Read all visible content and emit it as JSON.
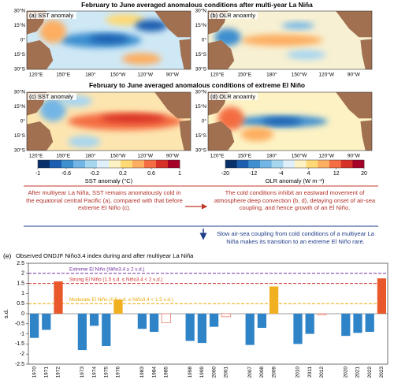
{
  "maps": {
    "title_top": "February to June averaged anomalous conditions after multi-year La Niña",
    "title_bottom": "February to June averaged anomalous conditions of extreme El Niño",
    "panels": [
      "(a) SST anomaly",
      "(b) OLR anoamly",
      "(c) SST anomaly",
      "(d) OLR anoamly"
    ],
    "lat_labels": [
      "30°N",
      "15°N",
      "0°",
      "15°S",
      "30°S"
    ],
    "lon_labels": [
      "120°E",
      "150°E",
      "180°",
      "150°W",
      "120°W",
      "90°W"
    ]
  },
  "colorbars": [
    {
      "label": "SST anomaly (°C)",
      "lim": [
        -1,
        1
      ],
      "ticks": [
        -1,
        -0.6,
        -0.2,
        0.2,
        0.6,
        1
      ]
    },
    {
      "label": "OLR anomaly (W m⁻²)",
      "lim": [
        -20,
        20
      ],
      "ticks": [
        -20,
        -12,
        -4,
        4,
        12,
        20
      ]
    }
  ],
  "notes": {
    "left": "After multiyear La Niña, SST remains anomalously cold in the equatorial central Pacific (a), compared with that before extreme El Niño (c).",
    "right": "The cold conditions inhibit an eastward movement of atmosphere deep convection (b, d), delaying onset of air-sea coupling, and hence growth of an El Niño.",
    "bottom": "Slow air-sea coupling from cold conditions of a multiyear La Niña makes its transition to an extreme El Niño rare."
  },
  "chart_data": {
    "type": "bar",
    "panel": "(e)",
    "title": "Observed ONDJF Niño3.4 index during and after multiyear La Niña",
    "y_label": "s.d.",
    "categories": [
      "1970",
      "1971",
      "1972",
      null,
      "1973",
      "1974",
      "1975",
      "1976",
      null,
      "1983",
      "1984",
      "1985",
      null,
      "1998",
      "1999",
      "2000",
      "2001",
      null,
      "2007",
      "2008",
      "2009",
      null,
      "2010",
      "2011",
      "2012",
      null,
      "2020",
      "2021",
      "2022",
      "2023"
    ],
    "values": [
      -1.2,
      -0.8,
      1.6,
      null,
      -1.8,
      -0.6,
      -1.6,
      0.7,
      null,
      -0.75,
      -0.9,
      -0.45,
      null,
      -1.35,
      -1.45,
      -0.65,
      -0.15,
      null,
      -1.55,
      -0.7,
      1.35,
      null,
      -1.5,
      -1.0,
      -0.05,
      null,
      -1.1,
      -0.95,
      -0.9,
      1.75
    ],
    "colors": [
      "#2f84c8",
      "#2f84c8",
      "#e8582a",
      null,
      "#2f84c8",
      "#2f84c8",
      "#2f84c8",
      "#f0b020",
      null,
      "#2f84c8",
      "#2f84c8",
      "none",
      null,
      "#2f84c8",
      "#2f84c8",
      "#2f84c8",
      "none",
      null,
      "#2f84c8",
      "#2f84c8",
      "#f0b020",
      null,
      "#2f84c8",
      "#2f84c8",
      "none",
      null,
      "#2f84c8",
      "#2f84c8",
      "#2f84c8",
      "#e8582a"
    ],
    "outline_color": "#e88070",
    "ylim": [
      -2.5,
      2.5
    ],
    "yticks": [
      -2.5,
      -2,
      -1.5,
      -1,
      -0.5,
      0,
      0.5,
      1,
      1.5,
      2,
      2.5
    ],
    "thresholds": [
      {
        "value": 2,
        "label": "Extreme El Niño (Niño3.4 ≥ 2 s.d.)",
        "color": "#7030a0"
      },
      {
        "value": 1.5,
        "label": "Strong El Niño (1.5 s.d. ≤ Niño3.4 < 2 s.d.)",
        "color": "#d03030"
      },
      {
        "value": 0.5,
        "label": "Moderate El Niño (0.5 s.d. ≤ Niño3.4 < 1.5 s.d.)",
        "color": "#e8a800"
      }
    ]
  }
}
